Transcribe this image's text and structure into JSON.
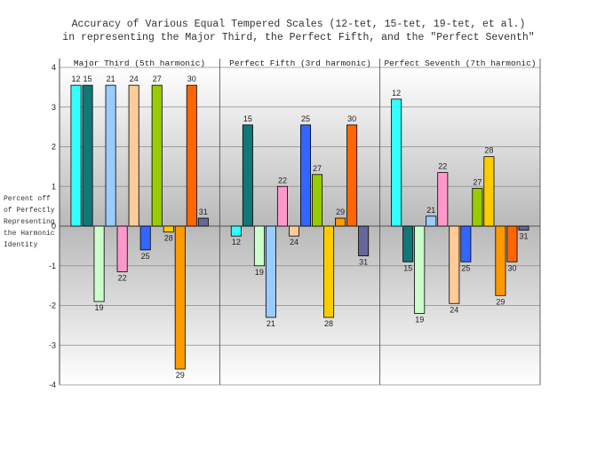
{
  "chart_data": {
    "type": "bar",
    "title_lines": [
      "Accuracy of Various Equal Tempered Scales (12-tet, 15-tet, 19-tet, et al.)",
      "in representing the Major Third, the Perfect Fifth, and the \"Perfect Seventh\""
    ],
    "ylabel_lines": [
      "Percent off",
      "of Perfectly",
      "Representing",
      "the Harmonic",
      "Identity"
    ],
    "ylim": [
      -4,
      4
    ],
    "yticks": [
      "4",
      "3",
      "2",
      "1",
      "0",
      "-1",
      "-2",
      "-3",
      "-4"
    ],
    "grid": true,
    "series_names": [
      "12",
      "15",
      "19",
      "21",
      "22",
      "24",
      "25",
      "27",
      "28",
      "29",
      "30",
      "31"
    ],
    "series_colors": {
      "12": "#33ffff",
      "15": "#117777",
      "19": "#ccffcc",
      "21": "#99ccff",
      "22": "#ff99cc",
      "24": "#ffcc99",
      "25": "#3366ff",
      "27": "#99cc00",
      "28": "#ffcc00",
      "29": "#ff9900",
      "30": "#ff6600",
      "31": "#666699"
    },
    "groups": [
      {
        "name": "Major Third (5th harmonic)",
        "bars": [
          {
            "series": "12",
            "value": 3.55
          },
          {
            "series": "15",
            "value": 3.55
          },
          {
            "series": "19",
            "value": -1.9
          },
          {
            "series": "21",
            "value": 3.55
          },
          {
            "series": "22",
            "value": -1.15
          },
          {
            "series": "24",
            "value": 3.55
          },
          {
            "series": "25",
            "value": -0.6
          },
          {
            "series": "27",
            "value": 3.55
          },
          {
            "series": "28",
            "value": -0.15
          },
          {
            "series": "29",
            "value": -3.6
          },
          {
            "series": "30",
            "value": 3.55
          },
          {
            "series": "31",
            "value": 0.2
          }
        ]
      },
      {
        "name": "Perfect Fifth (3rd harmonic)",
        "bars": [
          {
            "series": "12",
            "value": -0.25
          },
          {
            "series": "15",
            "value": 2.55
          },
          {
            "series": "19",
            "value": -1.0
          },
          {
            "series": "21",
            "value": -2.3
          },
          {
            "series": "22",
            "value": 1.0
          },
          {
            "series": "24",
            "value": -0.25
          },
          {
            "series": "25",
            "value": 2.55
          },
          {
            "series": "27",
            "value": 1.3
          },
          {
            "series": "28",
            "value": -2.3
          },
          {
            "series": "29",
            "value": 0.2
          },
          {
            "series": "30",
            "value": 2.55
          },
          {
            "series": "31",
            "value": -0.75
          }
        ]
      },
      {
        "name": "Perfect Seventh (7th harmonic)",
        "bars": [
          {
            "series": "12",
            "value": 3.2
          },
          {
            "series": "15",
            "value": -0.9
          },
          {
            "series": "19",
            "value": -2.2
          },
          {
            "series": "21",
            "value": 0.25
          },
          {
            "series": "22",
            "value": 1.35
          },
          {
            "series": "24",
            "value": -1.95
          },
          {
            "series": "25",
            "value": -0.9
          },
          {
            "series": "27",
            "value": 0.95
          },
          {
            "series": "28",
            "value": 1.75
          },
          {
            "series": "29",
            "value": -1.75
          },
          {
            "series": "30",
            "value": -0.9
          },
          {
            "series": "31",
            "value": -0.1
          }
        ]
      }
    ]
  }
}
